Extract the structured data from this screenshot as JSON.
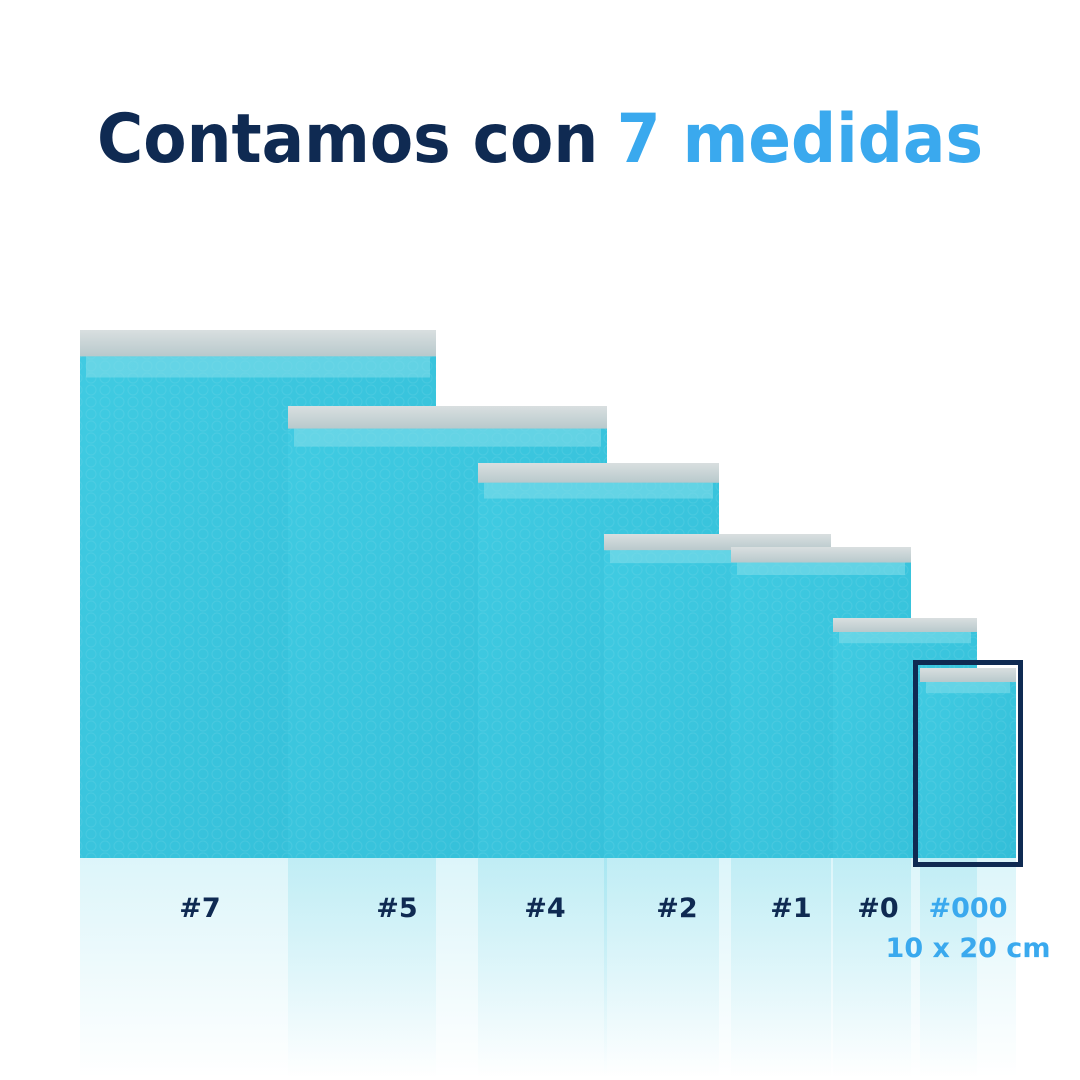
{
  "title": {
    "text": "Contamos con",
    "highlight": "7 medidas"
  },
  "sizes": [
    {
      "label": "#7"
    },
    {
      "label": "#5"
    },
    {
      "label": "#4"
    },
    {
      "label": "#2"
    },
    {
      "label": "#1"
    },
    {
      "label": "#0"
    },
    {
      "label": "#000",
      "dimensions": "10 x 20 cm"
    }
  ]
}
